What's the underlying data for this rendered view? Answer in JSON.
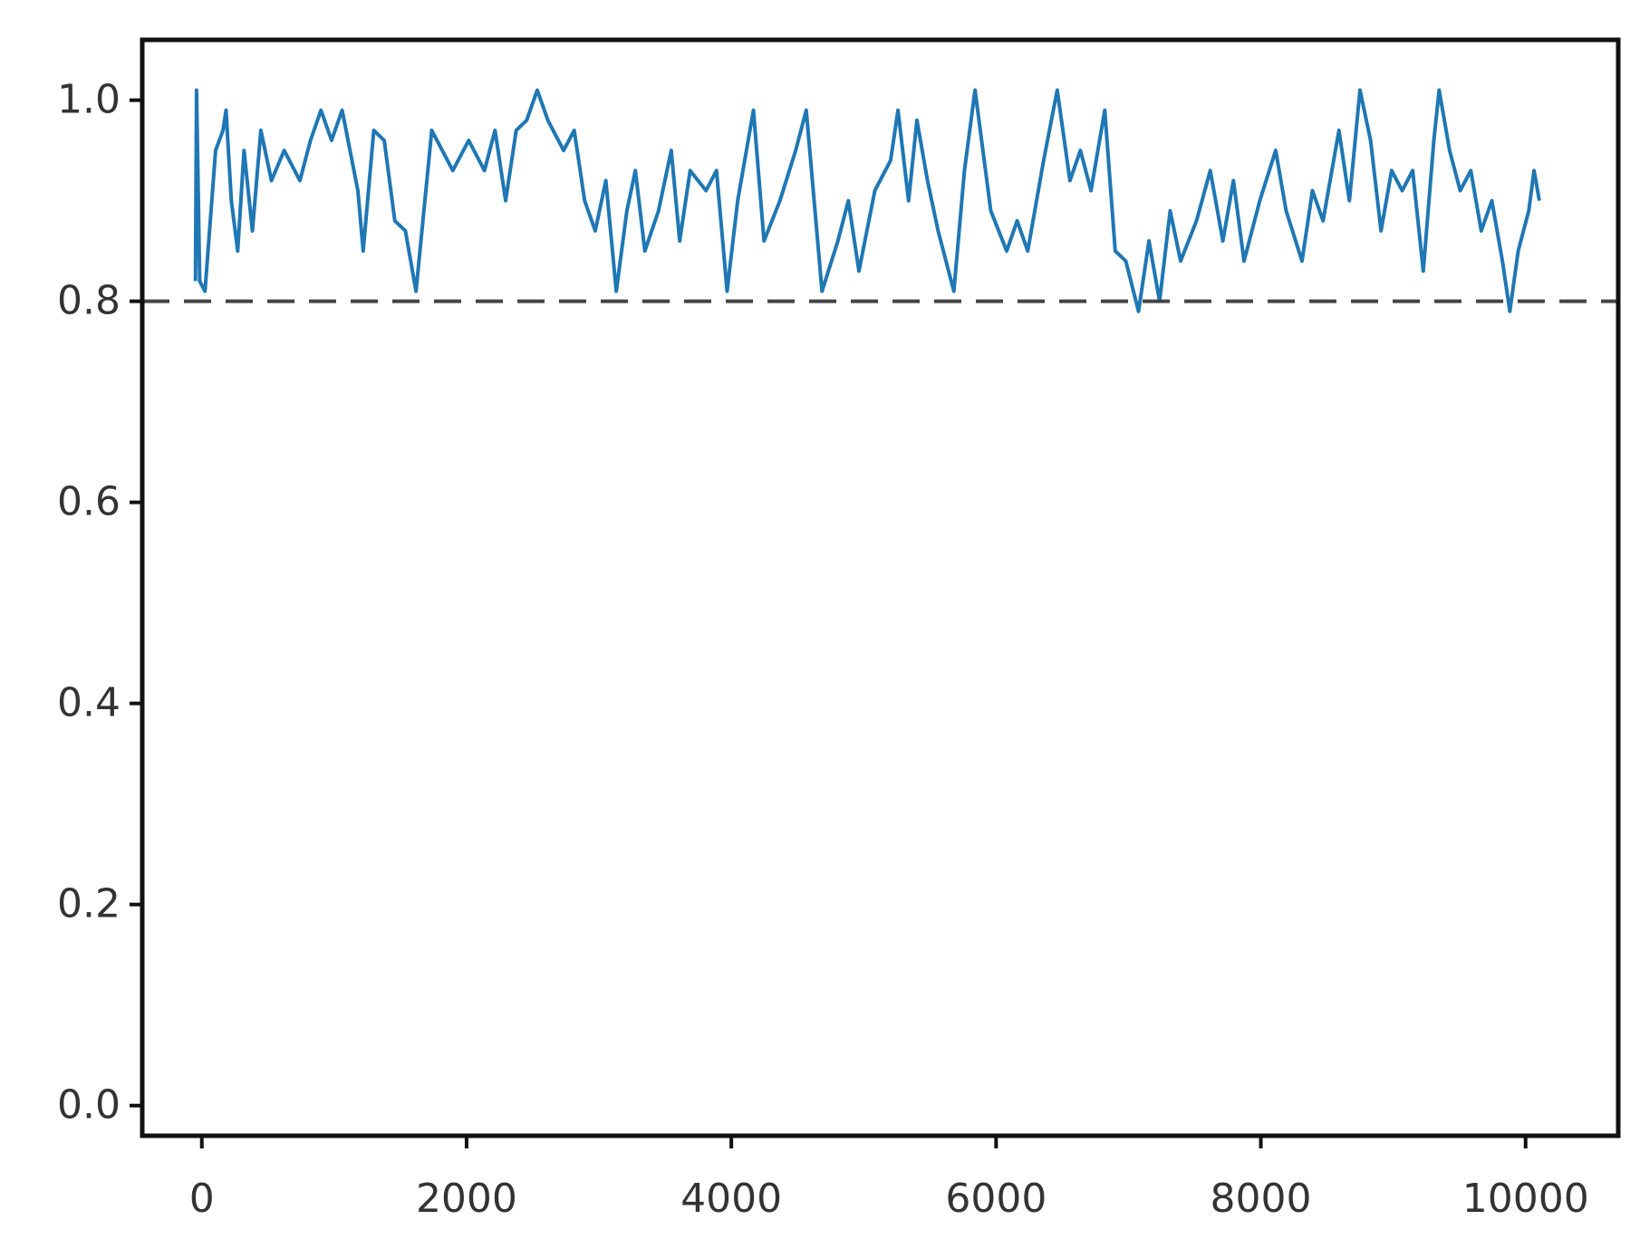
{
  "chart_data": {
    "type": "line",
    "x": [
      -48,
      -40,
      -16,
      24,
      64,
      104,
      160,
      183,
      223,
      271,
      319,
      382,
      446,
      526,
      622,
      741,
      821,
      900,
      980,
      1060,
      1179,
      1219,
      1299,
      1378,
      1458,
      1538,
      1618,
      1737,
      1896,
      2016,
      2135,
      2215,
      2295,
      2375,
      2454,
      2534,
      2614,
      2733,
      2813,
      2892,
      2972,
      3052,
      3131,
      3211,
      3275,
      3347,
      3450,
      3546,
      3610,
      3689,
      3809,
      3888,
      3968,
      4048,
      4167,
      4247,
      4367,
      4486,
      4566,
      4685,
      4805,
      4884,
      4964,
      5084,
      5203,
      5259,
      5339,
      5402,
      5482,
      5562,
      5681,
      5761,
      5841,
      5960,
      6080,
      6159,
      6239,
      6359,
      6462,
      6558,
      6637,
      6717,
      6821,
      6900,
      6980,
      7076,
      7155,
      7235,
      7315,
      7394,
      7514,
      7618,
      7713,
      7793,
      7873,
      7992,
      8112,
      8191,
      8311,
      8390,
      8470,
      8590,
      8669,
      8749,
      8829,
      8908,
      8988,
      9068,
      9147,
      9227,
      9307,
      9347,
      9426,
      9506,
      9586,
      9665,
      9745,
      9825,
      9881,
      9944,
      10024,
      10064,
      10104
    ],
    "series": [
      {
        "color": "#1f77b4",
        "values": [
          0.82,
          1.01,
          0.82,
          0.81,
          0.88,
          0.95,
          0.97,
          0.99,
          0.9,
          0.85,
          0.95,
          0.87,
          0.97,
          0.92,
          0.95,
          0.92,
          0.96,
          0.99,
          0.96,
          0.99,
          0.91,
          0.85,
          0.97,
          0.96,
          0.88,
          0.87,
          0.81,
          0.97,
          0.93,
          0.96,
          0.93,
          0.97,
          0.9,
          0.97,
          0.98,
          1.01,
          0.98,
          0.95,
          0.97,
          0.9,
          0.87,
          0.92,
          0.81,
          0.89,
          0.93,
          0.85,
          0.89,
          0.95,
          0.86,
          0.93,
          0.91,
          0.93,
          0.81,
          0.9,
          0.99,
          0.86,
          0.9,
          0.95,
          0.99,
          0.81,
          0.86,
          0.9,
          0.83,
          0.91,
          0.94,
          0.99,
          0.9,
          0.98,
          0.92,
          0.87,
          0.81,
          0.93,
          1.01,
          0.89,
          0.85,
          0.88,
          0.85,
          0.94,
          1.01,
          0.92,
          0.95,
          0.91,
          0.99,
          0.85,
          0.84,
          0.79,
          0.86,
          0.8,
          0.89,
          0.84,
          0.88,
          0.93,
          0.86,
          0.92,
          0.84,
          0.9,
          0.95,
          0.89,
          0.84,
          0.91,
          0.88,
          0.97,
          0.9,
          1.01,
          0.96,
          0.87,
          0.93,
          0.91,
          0.93,
          0.83,
          0.96,
          1.01,
          0.95,
          0.91,
          0.93,
          0.87,
          0.9,
          0.84,
          0.79,
          0.85,
          0.89,
          0.93,
          0.9
        ]
      }
    ],
    "xlim": [
      -450,
      10700
    ],
    "ylim": [
      -0.03,
      1.06
    ],
    "xticks": [
      0,
      2000,
      4000,
      6000,
      8000,
      10000
    ],
    "yticks": [
      {
        "value": 0,
        "label": "0.0"
      },
      0.2,
      0.4,
      0.6,
      0.8,
      {
        "value": 1,
        "label": "1.0"
      }
    ],
    "reference_line": {
      "y": 0.8,
      "color": "#444444",
      "style": "dashed"
    },
    "grid": false
  }
}
